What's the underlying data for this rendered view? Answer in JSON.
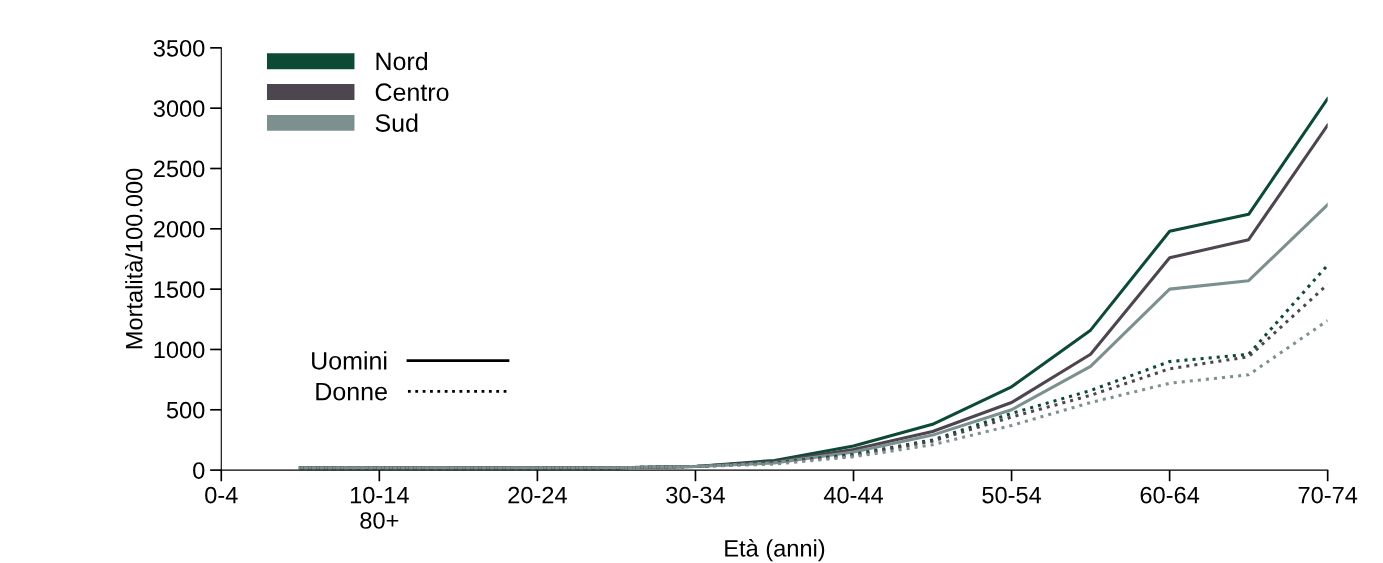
{
  "chart_data": {
    "type": "line",
    "xlabel": "Età (anni)",
    "ylabel": "Mortalità/100.000",
    "categories": [
      "0-4",
      null,
      "10-14\n80+",
      null,
      "20-24",
      null,
      "30-34",
      null,
      "40-44",
      null,
      "50-54",
      null,
      "60-64",
      null,
      "70-74"
    ],
    "series": [
      {
        "name": "Nord",
        "color": "#0d4a35",
        "line_style": "solid",
        "values": [
          null,
          20,
          20,
          20,
          20,
          20,
          30,
          80,
          200,
          380,
          690,
          1160,
          1980,
          2120,
          3080
        ]
      },
      {
        "name": "Centro",
        "color": "#4d4550",
        "line_style": "solid",
        "values": [
          null,
          20,
          20,
          20,
          20,
          20,
          30,
          70,
          170,
          320,
          560,
          960,
          1760,
          1910,
          2860
        ]
      },
      {
        "name": "Sud",
        "color": "#7d9090",
        "line_style": "solid",
        "values": [
          null,
          20,
          20,
          20,
          20,
          20,
          30,
          60,
          150,
          290,
          500,
          860,
          1500,
          1570,
          2200
        ]
      },
      {
        "color": "#0d4a35",
        "line_style": "dotted",
        "values": [
          null,
          20,
          20,
          20,
          20,
          20,
          30,
          60,
          130,
          250,
          470,
          660,
          900,
          960,
          1700
        ]
      },
      {
        "color": "#4d4550",
        "line_style": "dotted",
        "values": [
          null,
          20,
          20,
          20,
          20,
          20,
          30,
          60,
          120,
          240,
          440,
          620,
          840,
          940,
          1540
        ]
      },
      {
        "color": "#7d9090",
        "line_style": "dotted",
        "values": [
          null,
          20,
          20,
          20,
          20,
          20,
          30,
          50,
          110,
          210,
          370,
          560,
          720,
          790,
          1240
        ]
      }
    ],
    "annotations": [
      "Uomini",
      "Donne"
    ],
    "ylim": [
      0,
      3500
    ],
    "yticks": [
      0,
      500,
      1000,
      1500,
      2000,
      2500,
      3000,
      3500
    ],
    "grid": false,
    "legend": "top left",
    "marker": "none"
  }
}
